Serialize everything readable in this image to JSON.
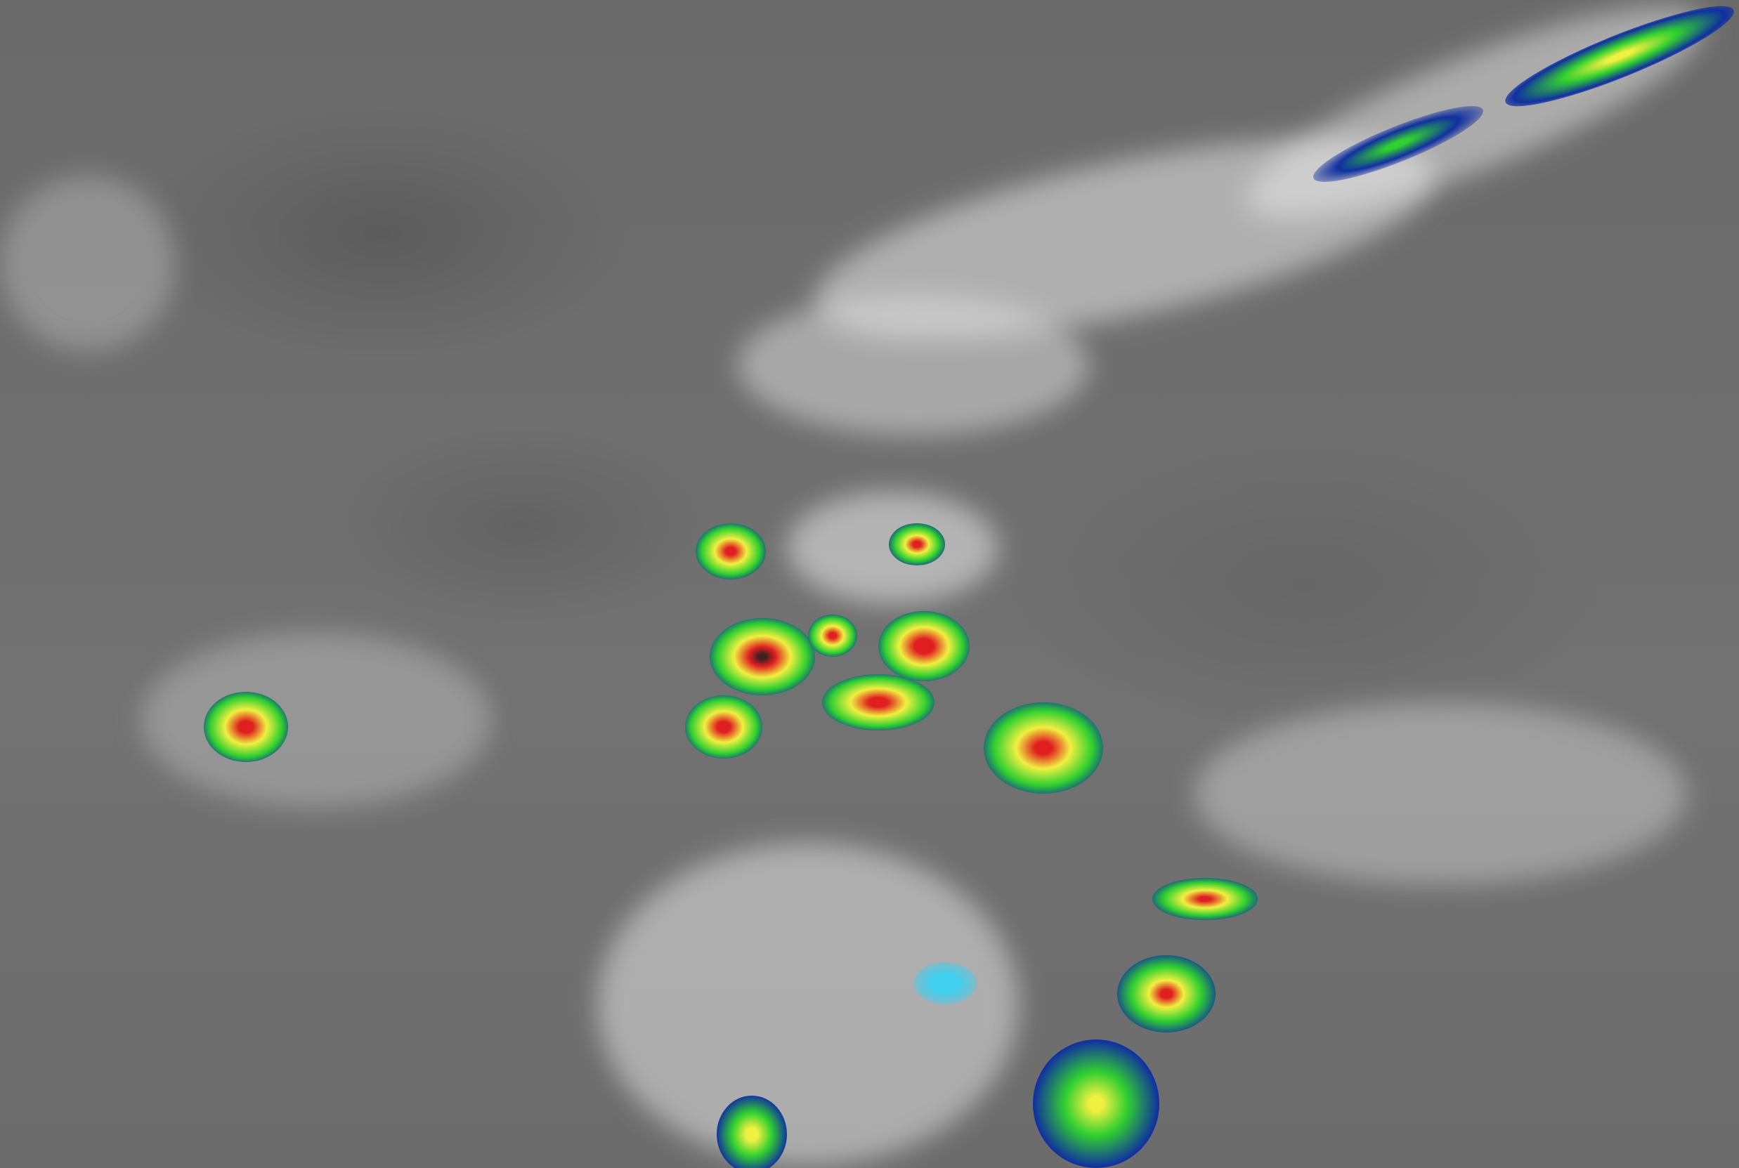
{
  "image": {
    "kind": "infrared satellite image with enhanced color cloud-top temperatures",
    "colors": {
      "background": "#6e6e6e",
      "cold_cloud": "#e8e8e8",
      "cyan": "#40d0f0",
      "blue": "#1030a0",
      "green": "#30d030",
      "yellow": "#f0f040",
      "red": "#e02020",
      "darkest": "#402020"
    }
  }
}
